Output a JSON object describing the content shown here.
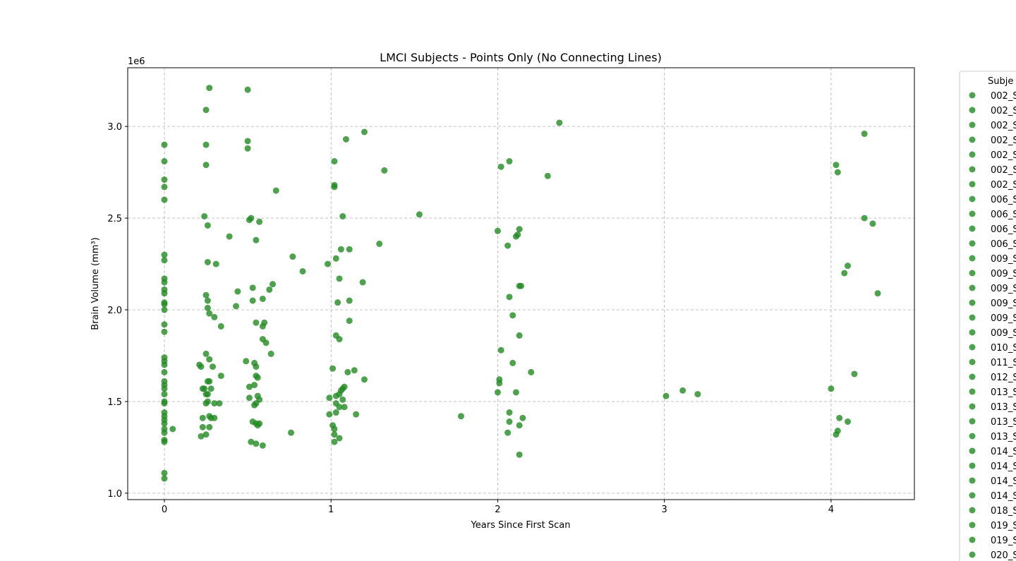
{
  "chart_data": {
    "type": "scatter",
    "title": "LMCI Subjects - Points Only (No Connecting Lines)",
    "xlabel": "Years Since First Scan",
    "ylabel": "Brain Volume (mm³)",
    "y_offset_label": "1e6",
    "xlim": [
      -0.22,
      4.5
    ],
    "ylim": [
      0.965,
      3.32
    ],
    "x_ticks": [
      0,
      1,
      2,
      3,
      4
    ],
    "x_tick_labels": [
      "0",
      "1",
      "2",
      "3",
      "4"
    ],
    "y_ticks": [
      1.0,
      1.5,
      2.0,
      2.5,
      3.0
    ],
    "y_tick_labels": [
      "1.0",
      "1.5",
      "2.0",
      "2.5",
      "3.0"
    ],
    "grid": true,
    "legend_title": "Subje",
    "legend_placement": "outside-right",
    "legend_entries": [
      "002_S",
      "002_S",
      "002_S",
      "002_S",
      "002_S",
      "002_S",
      "002_S",
      "006_S",
      "006_S",
      "006_S",
      "006_S",
      "009_S",
      "009_S",
      "009_S",
      "009_S",
      "009_S",
      "009_S",
      "010_S",
      "011_S",
      "012_S",
      "013_S",
      "013_S",
      "013_S",
      "013_S",
      "014_S",
      "014_S",
      "014_S",
      "014_S",
      "018_S",
      "019_S",
      "019_S",
      "020_S"
    ],
    "marker_color": "#228B22",
    "points": [
      [
        0,
        2.9
      ],
      [
        0,
        2.81
      ],
      [
        0,
        2.71
      ],
      [
        0,
        2.67
      ],
      [
        0,
        2.6
      ],
      [
        0,
        2.3
      ],
      [
        0,
        2.27
      ],
      [
        0,
        2.17
      ],
      [
        0,
        2.15
      ],
      [
        0,
        2.11
      ],
      [
        0,
        2.09
      ],
      [
        0,
        2.04
      ],
      [
        0,
        2.03
      ],
      [
        0,
        2.0
      ],
      [
        0,
        1.92
      ],
      [
        0,
        1.88
      ],
      [
        0,
        1.74
      ],
      [
        0,
        1.72
      ],
      [
        0,
        1.7
      ],
      [
        0,
        1.66
      ],
      [
        0,
        1.61
      ],
      [
        0,
        1.59
      ],
      [
        0,
        1.57
      ],
      [
        0,
        1.54
      ],
      [
        0,
        1.5
      ],
      [
        0,
        1.49
      ],
      [
        0,
        1.44
      ],
      [
        0,
        1.42
      ],
      [
        0,
        1.4
      ],
      [
        0,
        1.38
      ],
      [
        0,
        1.35
      ],
      [
        0,
        1.33
      ],
      [
        0,
        1.29
      ],
      [
        0,
        1.28
      ],
      [
        0,
        1.11
      ],
      [
        0,
        1.08
      ],
      [
        0.05,
        1.35
      ],
      [
        0.27,
        3.21
      ],
      [
        0.25,
        3.09
      ],
      [
        0.25,
        2.9
      ],
      [
        0.25,
        2.79
      ],
      [
        0.24,
        2.51
      ],
      [
        0.26,
        2.46
      ],
      [
        0.26,
        2.26
      ],
      [
        0.31,
        2.25
      ],
      [
        0.25,
        2.08
      ],
      [
        0.26,
        2.05
      ],
      [
        0.26,
        2.01
      ],
      [
        0.27,
        1.98
      ],
      [
        0.3,
        1.96
      ],
      [
        0.34,
        1.91
      ],
      [
        0.25,
        1.76
      ],
      [
        0.27,
        1.73
      ],
      [
        0.21,
        1.7
      ],
      [
        0.22,
        1.69
      ],
      [
        0.29,
        1.69
      ],
      [
        0.34,
        1.64
      ],
      [
        0.26,
        1.61
      ],
      [
        0.27,
        1.61
      ],
      [
        0.23,
        1.57
      ],
      [
        0.24,
        1.57
      ],
      [
        0.28,
        1.57
      ],
      [
        0.25,
        1.54
      ],
      [
        0.26,
        1.54
      ],
      [
        0.26,
        1.5
      ],
      [
        0.3,
        1.49
      ],
      [
        0.33,
        1.49
      ],
      [
        0.25,
        1.49
      ],
      [
        0.27,
        1.42
      ],
      [
        0.23,
        1.41
      ],
      [
        0.3,
        1.41
      ],
      [
        0.28,
        1.41
      ],
      [
        0.23,
        1.36
      ],
      [
        0.27,
        1.36
      ],
      [
        0.25,
        1.32
      ],
      [
        0.22,
        1.31
      ],
      [
        0.5,
        3.2
      ],
      [
        0.5,
        2.92
      ],
      [
        0.5,
        2.88
      ],
      [
        0.67,
        2.65
      ],
      [
        0.52,
        2.5
      ],
      [
        0.51,
        2.49
      ],
      [
        0.57,
        2.48
      ],
      [
        0.39,
        2.4
      ],
      [
        0.55,
        2.38
      ],
      [
        0.65,
        2.14
      ],
      [
        0.53,
        2.12
      ],
      [
        0.63,
        2.11
      ],
      [
        0.44,
        2.1
      ],
      [
        0.59,
        2.06
      ],
      [
        0.53,
        2.05
      ],
      [
        0.43,
        2.02
      ],
      [
        0.55,
        1.93
      ],
      [
        0.6,
        1.93
      ],
      [
        0.59,
        1.91
      ],
      [
        0.59,
        1.84
      ],
      [
        0.61,
        1.82
      ],
      [
        0.64,
        1.76
      ],
      [
        0.49,
        1.72
      ],
      [
        0.54,
        1.71
      ],
      [
        0.55,
        1.69
      ],
      [
        0.55,
        1.64
      ],
      [
        0.56,
        1.63
      ],
      [
        0.51,
        1.58
      ],
      [
        0.54,
        1.59
      ],
      [
        0.56,
        1.53
      ],
      [
        0.57,
        1.51
      ],
      [
        0.51,
        1.52
      ],
      [
        0.54,
        1.48
      ],
      [
        0.55,
        1.49
      ],
      [
        0.53,
        1.39
      ],
      [
        0.55,
        1.38
      ],
      [
        0.57,
        1.38
      ],
      [
        0.56,
        1.37
      ],
      [
        0.52,
        1.28
      ],
      [
        0.55,
        1.27
      ],
      [
        0.59,
        1.26
      ],
      [
        0.76,
        1.33
      ],
      [
        0.77,
        2.29
      ],
      [
        0.83,
        2.21
      ],
      [
        1.02,
        2.81
      ],
      [
        1.02,
        2.68
      ],
      [
        1.02,
        2.67
      ],
      [
        1.07,
        2.51
      ],
      [
        1.09,
        2.93
      ],
      [
        1.2,
        2.97
      ],
      [
        1.32,
        2.76
      ],
      [
        1.29,
        2.36
      ],
      [
        1.06,
        2.33
      ],
      [
        1.11,
        2.33
      ],
      [
        1.03,
        2.28
      ],
      [
        0.98,
        2.25
      ],
      [
        1.05,
        2.17
      ],
      [
        1.19,
        2.15
      ],
      [
        1.04,
        2.04
      ],
      [
        1.11,
        2.05
      ],
      [
        1.11,
        1.94
      ],
      [
        1.03,
        1.86
      ],
      [
        1.05,
        1.84
      ],
      [
        1.01,
        1.68
      ],
      [
        1.14,
        1.67
      ],
      [
        1.1,
        1.66
      ],
      [
        1.2,
        1.62
      ],
      [
        1.08,
        1.58
      ],
      [
        1.07,
        1.57
      ],
      [
        1.06,
        1.56
      ],
      [
        1.03,
        1.53
      ],
      [
        1.05,
        1.54
      ],
      [
        0.99,
        1.52
      ],
      [
        1.07,
        1.51
      ],
      [
        1.03,
        1.49
      ],
      [
        1.05,
        1.47
      ],
      [
        1.08,
        1.47
      ],
      [
        1.03,
        1.44
      ],
      [
        0.99,
        1.43
      ],
      [
        1.15,
        1.43
      ],
      [
        1.01,
        1.37
      ],
      [
        1.02,
        1.35
      ],
      [
        1.02,
        1.32
      ],
      [
        1.05,
        1.3
      ],
      [
        1.02,
        1.28
      ],
      [
        1.53,
        2.52
      ],
      [
        1.78,
        1.42
      ],
      [
        2.37,
        3.02
      ],
      [
        2.07,
        2.81
      ],
      [
        2.02,
        2.78
      ],
      [
        2.3,
        2.73
      ],
      [
        2.0,
        2.43
      ],
      [
        2.13,
        2.44
      ],
      [
        2.11,
        2.4
      ],
      [
        2.12,
        2.41
      ],
      [
        2.06,
        2.35
      ],
      [
        2.13,
        2.13
      ],
      [
        2.14,
        2.13
      ],
      [
        2.07,
        2.07
      ],
      [
        2.09,
        1.97
      ],
      [
        2.13,
        1.86
      ],
      [
        2.02,
        1.78
      ],
      [
        2.09,
        1.71
      ],
      [
        2.2,
        1.66
      ],
      [
        2.01,
        1.62
      ],
      [
        2.01,
        1.6
      ],
      [
        2.0,
        1.55
      ],
      [
        2.11,
        1.55
      ],
      [
        2.07,
        1.44
      ],
      [
        2.15,
        1.41
      ],
      [
        2.07,
        1.39
      ],
      [
        2.13,
        1.37
      ],
      [
        2.06,
        1.33
      ],
      [
        2.13,
        1.21
      ],
      [
        3.01,
        1.53
      ],
      [
        3.11,
        1.56
      ],
      [
        3.2,
        1.54
      ],
      [
        4.2,
        2.96
      ],
      [
        4.03,
        2.79
      ],
      [
        4.04,
        2.75
      ],
      [
        4.2,
        2.5
      ],
      [
        4.25,
        2.47
      ],
      [
        4.1,
        2.24
      ],
      [
        4.08,
        2.2
      ],
      [
        4.28,
        2.09
      ],
      [
        4.14,
        1.65
      ],
      [
        4.0,
        1.57
      ],
      [
        4.05,
        1.41
      ],
      [
        4.1,
        1.39
      ],
      [
        4.04,
        1.34
      ],
      [
        4.03,
        1.32
      ]
    ]
  }
}
